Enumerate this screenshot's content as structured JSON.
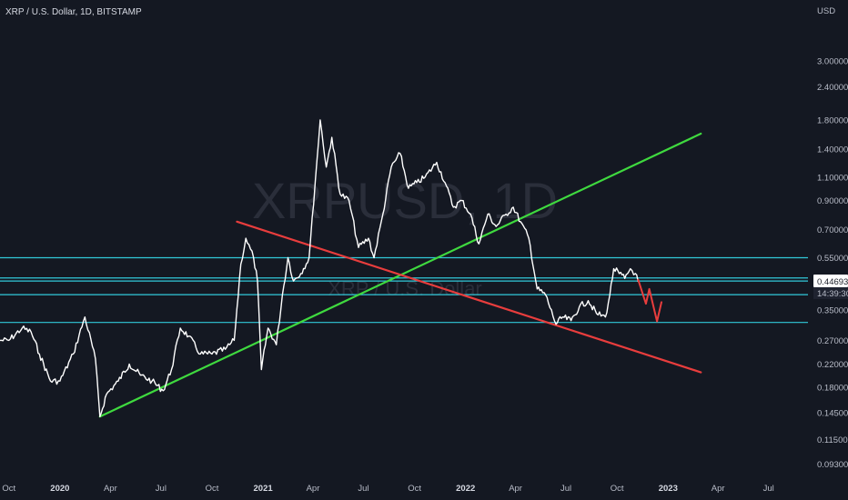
{
  "chart_data": {
    "type": "line",
    "title": "XRP / U.S. Dollar, 1D, BITSTAMP",
    "watermark_symbol": "XRPUSD, 1D",
    "watermark_name": "XRP / U.S. Dollar",
    "y_unit": "USD",
    "y_scale": "log",
    "ylim": [
      0.085,
      4.0
    ],
    "y_ticks": [
      "3.00000",
      "2.40000",
      "1.80000",
      "1.40000",
      "1.10000",
      "0.90000",
      "0.70000",
      "0.55000",
      "0.45000",
      "0.35000",
      "0.27000",
      "0.22000",
      "0.18000",
      "0.14500",
      "0.11500",
      "0.09300"
    ],
    "xlim": [
      "2019-09-15",
      "2023-09-10"
    ],
    "x_ticks": [
      {
        "date": "2019-10-01",
        "label": "Oct",
        "bold": false
      },
      {
        "date": "2020-01-01",
        "label": "2020",
        "bold": true
      },
      {
        "date": "2020-04-01",
        "label": "Apr",
        "bold": false
      },
      {
        "date": "2020-07-01",
        "label": "Jul",
        "bold": false
      },
      {
        "date": "2020-10-01",
        "label": "Oct",
        "bold": false
      },
      {
        "date": "2021-01-01",
        "label": "2021",
        "bold": true
      },
      {
        "date": "2021-04-01",
        "label": "Apr",
        "bold": false
      },
      {
        "date": "2021-07-01",
        "label": "Jul",
        "bold": false
      },
      {
        "date": "2021-10-01",
        "label": "Oct",
        "bold": false
      },
      {
        "date": "2022-01-01",
        "label": "2022",
        "bold": true
      },
      {
        "date": "2022-04-01",
        "label": "Apr",
        "bold": false
      },
      {
        "date": "2022-07-01",
        "label": "Jul",
        "bold": false
      },
      {
        "date": "2022-10-01",
        "label": "Oct",
        "bold": false
      },
      {
        "date": "2023-01-01",
        "label": "2023",
        "bold": true
      },
      {
        "date": "2023-04-01",
        "label": "Apr",
        "bold": false
      },
      {
        "date": "2023-07-01",
        "label": "Jul",
        "bold": false
      }
    ],
    "series": [
      {
        "color": "#ffffff",
        "points": [
          [
            "2019-09-15",
            0.27
          ],
          [
            "2019-10-01",
            0.27
          ],
          [
            "2019-10-25",
            0.3
          ],
          [
            "2019-11-10",
            0.29
          ],
          [
            "2019-11-25",
            0.24
          ],
          [
            "2019-12-15",
            0.19
          ],
          [
            "2020-01-01",
            0.19
          ],
          [
            "2020-01-25",
            0.24
          ],
          [
            "2020-02-15",
            0.33
          ],
          [
            "2020-03-05",
            0.23
          ],
          [
            "2020-03-13",
            0.14
          ],
          [
            "2020-03-25",
            0.17
          ],
          [
            "2020-04-15",
            0.19
          ],
          [
            "2020-05-05",
            0.22
          ],
          [
            "2020-05-25",
            0.2
          ],
          [
            "2020-06-15",
            0.19
          ],
          [
            "2020-07-05",
            0.175
          ],
          [
            "2020-07-20",
            0.21
          ],
          [
            "2020-08-05",
            0.3
          ],
          [
            "2020-08-20",
            0.28
          ],
          [
            "2020-09-10",
            0.24
          ],
          [
            "2020-10-01",
            0.24
          ],
          [
            "2020-10-25",
            0.25
          ],
          [
            "2020-11-10",
            0.27
          ],
          [
            "2020-11-22",
            0.52
          ],
          [
            "2020-12-01",
            0.65
          ],
          [
            "2020-12-15",
            0.55
          ],
          [
            "2020-12-22",
            0.45
          ],
          [
            "2020-12-29",
            0.21
          ],
          [
            "2021-01-10",
            0.3
          ],
          [
            "2021-01-25",
            0.26
          ],
          [
            "2021-02-05",
            0.4
          ],
          [
            "2021-02-15",
            0.55
          ],
          [
            "2021-02-25",
            0.45
          ],
          [
            "2021-03-10",
            0.48
          ],
          [
            "2021-03-25",
            0.55
          ],
          [
            "2021-04-05",
            1.05
          ],
          [
            "2021-04-14",
            1.8
          ],
          [
            "2021-04-25",
            1.2
          ],
          [
            "2021-05-05",
            1.55
          ],
          [
            "2021-05-20",
            0.95
          ],
          [
            "2021-06-05",
            0.9
          ],
          [
            "2021-06-22",
            0.6
          ],
          [
            "2021-07-10",
            0.65
          ],
          [
            "2021-07-20",
            0.55
          ],
          [
            "2021-08-05",
            0.8
          ],
          [
            "2021-08-20",
            1.2
          ],
          [
            "2021-09-05",
            1.35
          ],
          [
            "2021-09-20",
            1.0
          ],
          [
            "2021-10-05",
            1.05
          ],
          [
            "2021-10-20",
            1.1
          ],
          [
            "2021-11-10",
            1.25
          ],
          [
            "2021-11-25",
            1.05
          ],
          [
            "2021-12-10",
            0.85
          ],
          [
            "2021-12-25",
            0.9
          ],
          [
            "2022-01-10",
            0.8
          ],
          [
            "2022-01-25",
            0.62
          ],
          [
            "2022-02-10",
            0.8
          ],
          [
            "2022-02-25",
            0.72
          ],
          [
            "2022-03-15",
            0.8
          ],
          [
            "2022-03-28",
            0.85
          ],
          [
            "2022-04-10",
            0.75
          ],
          [
            "2022-04-25",
            0.65
          ],
          [
            "2022-05-10",
            0.42
          ],
          [
            "2022-05-25",
            0.4
          ],
          [
            "2022-06-13",
            0.31
          ],
          [
            "2022-06-25",
            0.33
          ],
          [
            "2022-07-10",
            0.32
          ],
          [
            "2022-07-25",
            0.36
          ],
          [
            "2022-08-10",
            0.38
          ],
          [
            "2022-08-25",
            0.34
          ],
          [
            "2022-09-10",
            0.33
          ],
          [
            "2022-09-18",
            0.4
          ],
          [
            "2022-09-25",
            0.5
          ],
          [
            "2022-10-05",
            0.48
          ],
          [
            "2022-10-15",
            0.46
          ],
          [
            "2022-10-25",
            0.5
          ],
          [
            "2022-11-03",
            0.48
          ],
          [
            "2022-11-08",
            0.447
          ]
        ]
      }
    ],
    "horizontal_levels": [
      {
        "value": 0.55,
        "color": "#31c9d9"
      },
      {
        "value": 0.462,
        "color": "#31c9d9"
      },
      {
        "value": 0.45,
        "color": "#31c9d9"
      },
      {
        "value": 0.4,
        "color": "#31c9d9"
      },
      {
        "value": 0.315,
        "color": "#31c9d9"
      }
    ],
    "trendlines": [
      {
        "color": "#3fd93f",
        "from": [
          "2020-03-13",
          0.14
        ],
        "to": [
          "2023-03-01",
          1.6
        ]
      },
      {
        "color": "#e83d3d",
        "from": [
          "2020-11-15",
          0.75
        ],
        "to": [
          "2023-03-01",
          0.205
        ]
      }
    ],
    "arrows": [
      {
        "color": "#e83d3d",
        "points": [
          [
            "2022-11-08",
            0.455
          ],
          [
            "2022-11-22",
            0.37
          ],
          [
            "2022-11-28",
            0.42
          ],
          [
            "2022-12-12",
            0.318
          ],
          [
            "2022-12-20",
            0.375
          ]
        ]
      }
    ],
    "price_tag": {
      "value": 0.44693,
      "label": "0.44693",
      "countdown": "14:39:30",
      "color": "#ffffff"
    }
  }
}
